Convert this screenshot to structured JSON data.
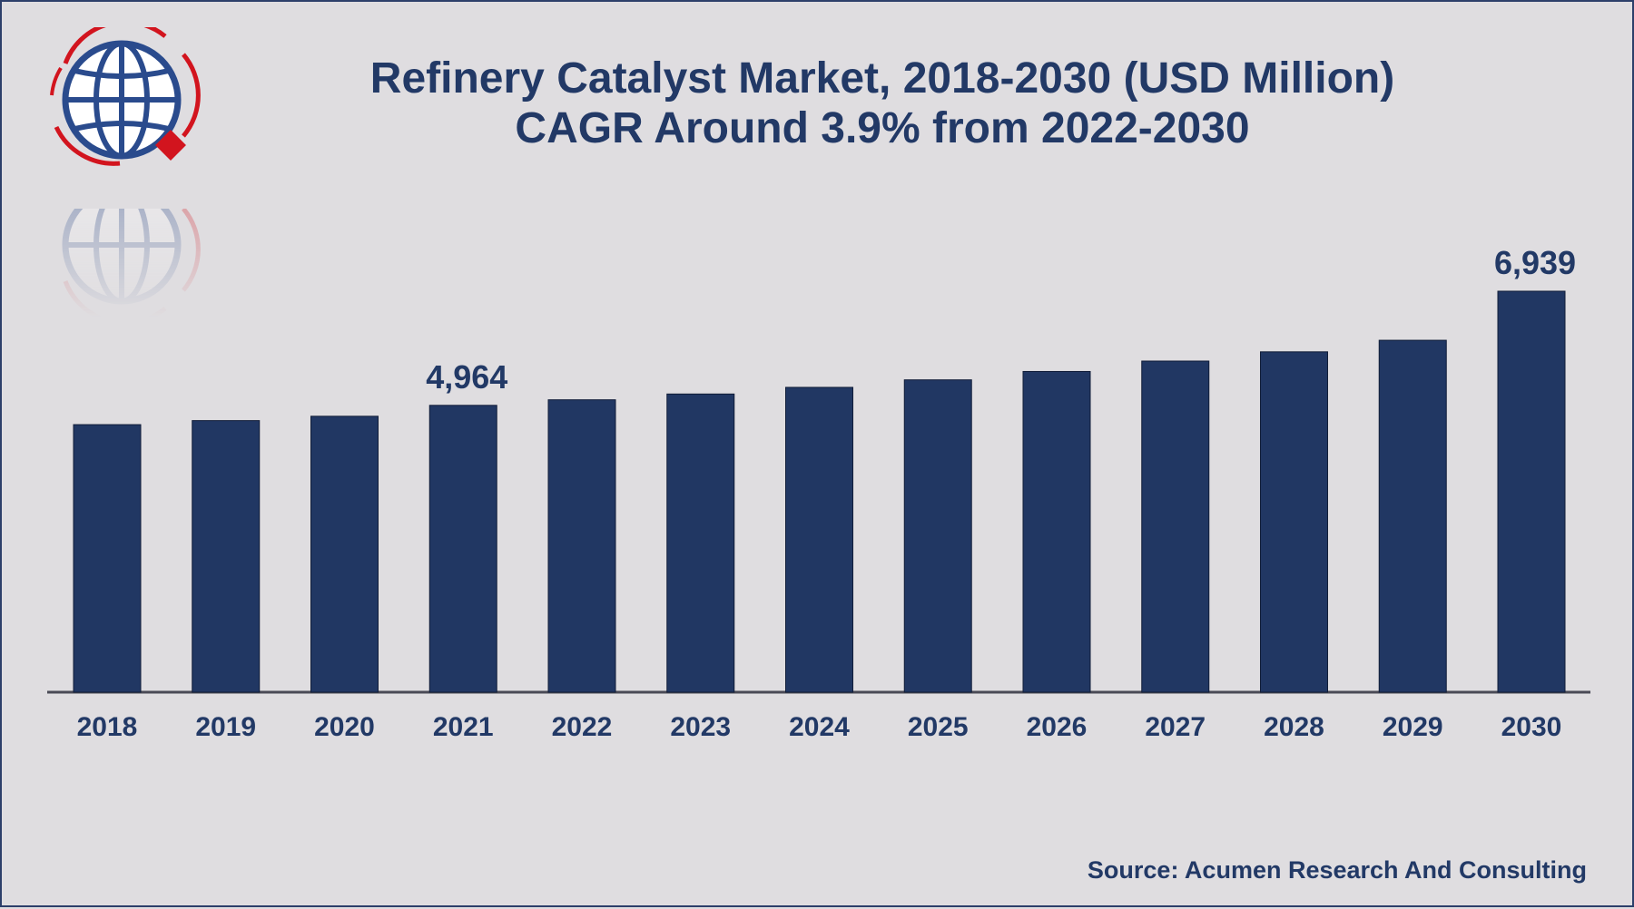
{
  "title": {
    "line1": "Refinery Catalyst Market, 2018-2030 (USD Million)",
    "line2": "CAGR Around 3.9% from 2022-2030"
  },
  "source": "Source: Acumen Research And Consulting",
  "logo": {
    "icon": "globe-magnifier-logo",
    "colors": {
      "globe": "#2a4b8d",
      "accent": "#d2141e"
    }
  },
  "colors": {
    "bar": "#213763",
    "text": "#223966",
    "background": "#dfdde0",
    "axis": "#4a4a55"
  },
  "chart_data": {
    "type": "bar",
    "categories": [
      "2018",
      "2019",
      "2020",
      "2021",
      "2022",
      "2023",
      "2024",
      "2025",
      "2026",
      "2027",
      "2028",
      "2029",
      "2030"
    ],
    "values": [
      4630,
      4700,
      4775,
      4964,
      5060,
      5160,
      5275,
      5405,
      5550,
      5730,
      5890,
      6090,
      6939
    ],
    "data_labels": {
      "2021": "4,964",
      "2030": "6,939"
    },
    "xlabel": "",
    "ylabel": "",
    "grid": false,
    "legend": "none"
  }
}
